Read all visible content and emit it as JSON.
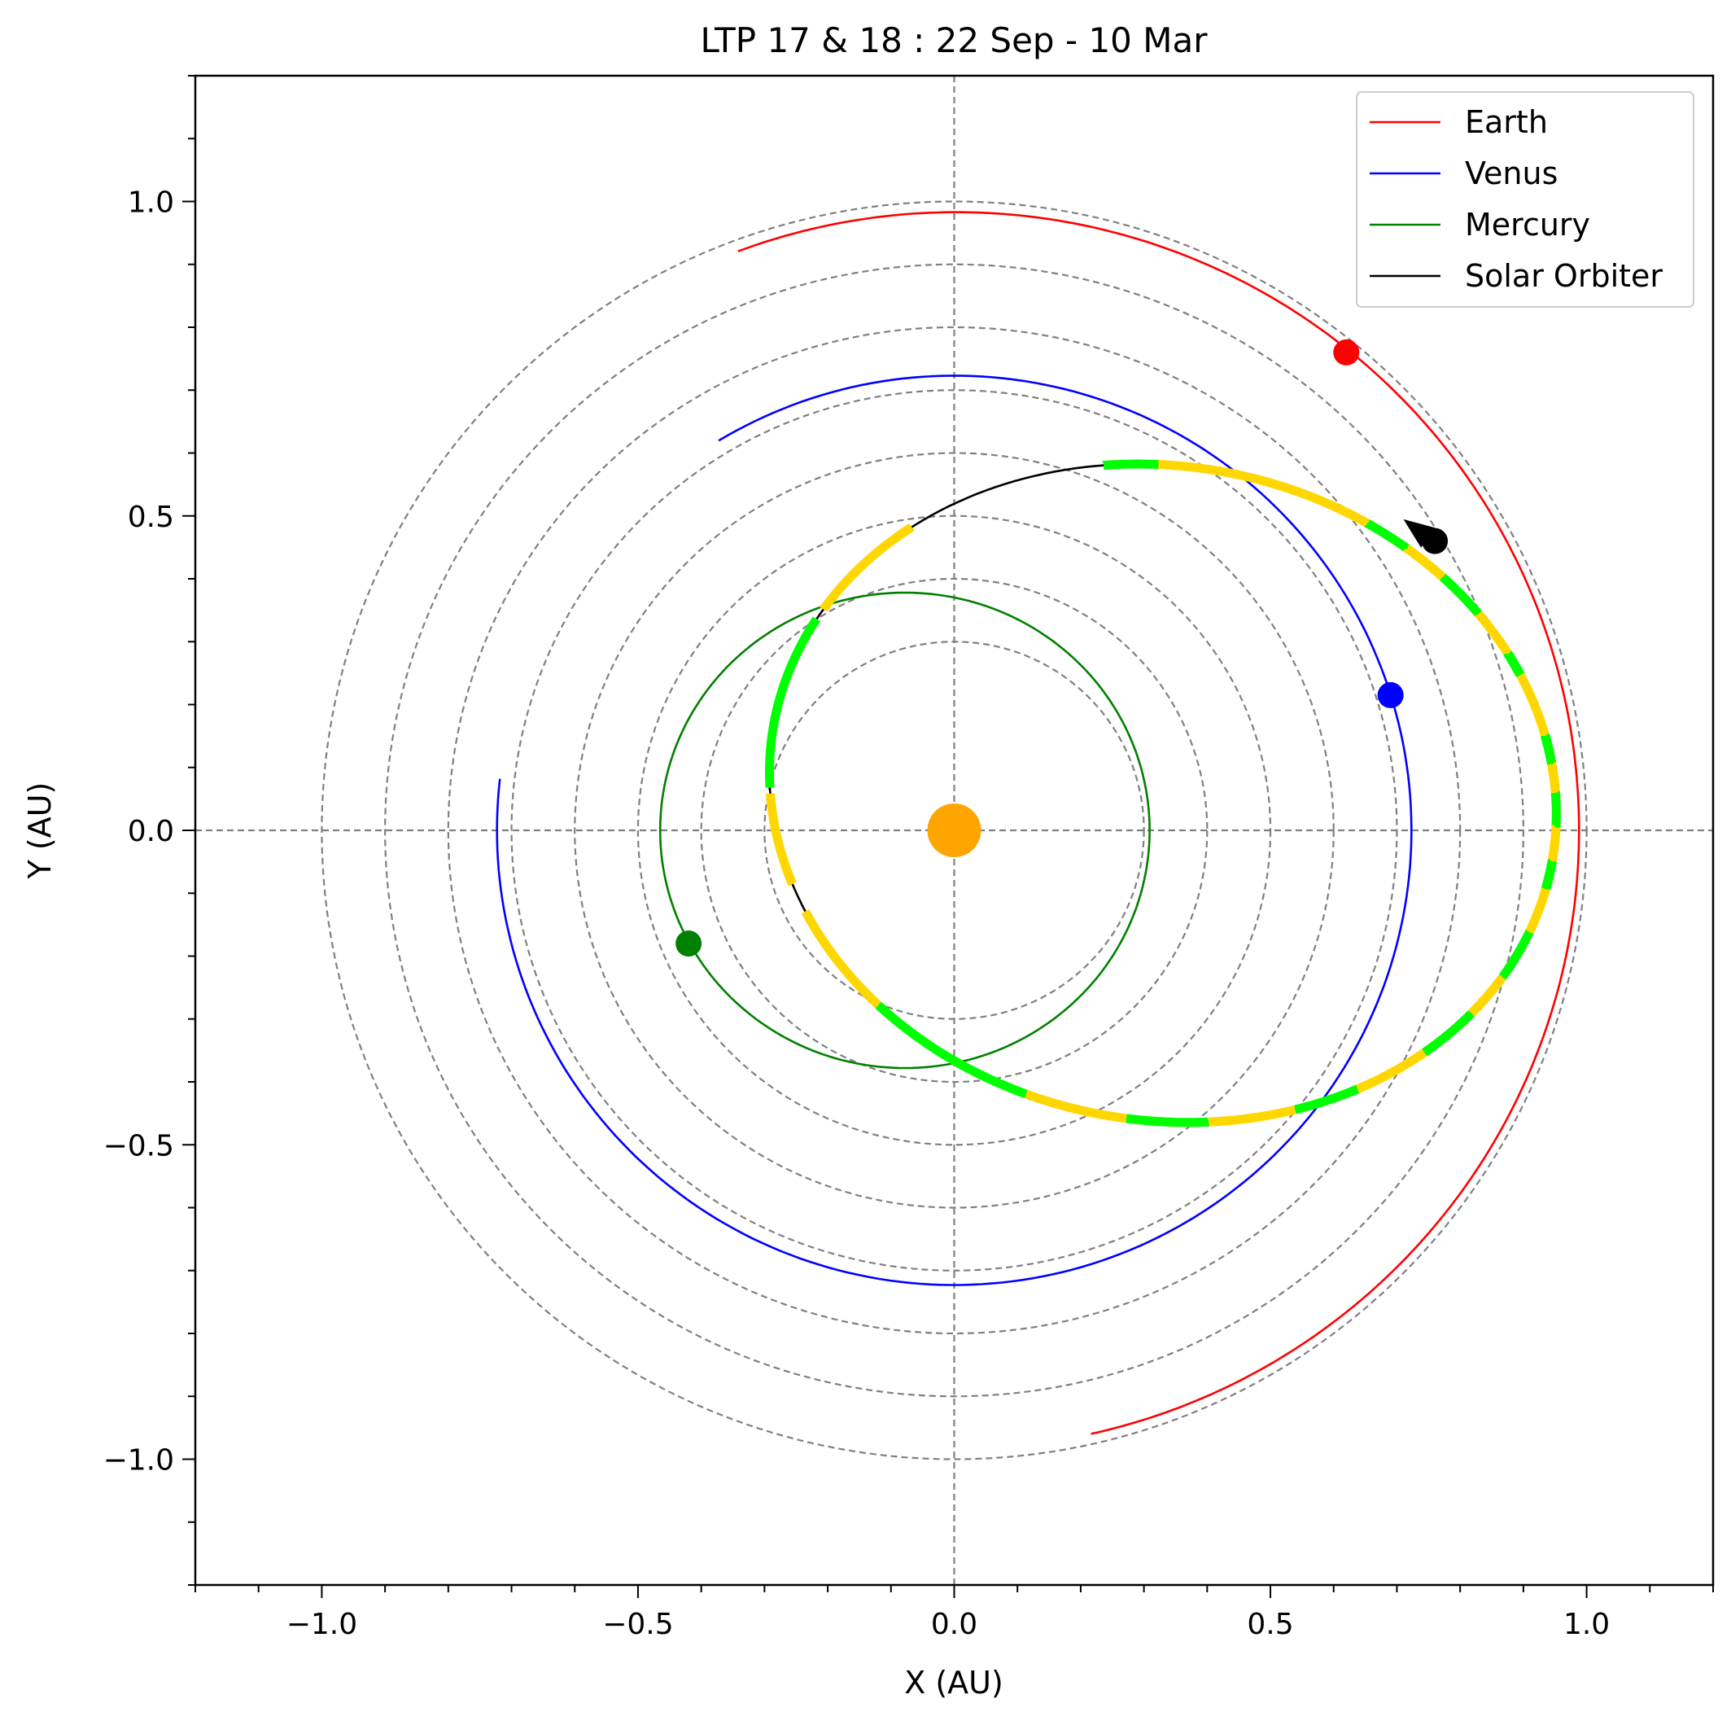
{
  "chart_data": {
    "type": "line",
    "title": "LTP 17 & 18 : 22 Sep - 10 Mar",
    "xlabel": "X (AU)",
    "ylabel": "Y (AU)",
    "xlim": [
      -1.2,
      1.2
    ],
    "ylim": [
      -1.2,
      1.2
    ],
    "x_ticks": [
      "−1.0",
      "−0.5",
      "0.0",
      "0.5",
      "1.0"
    ],
    "x_tick_values": [
      -1.0,
      -0.5,
      0.0,
      0.5,
      1.0
    ],
    "y_ticks": [
      "1.0",
      "0.5",
      "0.0",
      "−0.5",
      "−1.0"
    ],
    "y_tick_values": [
      1.0,
      0.5,
      0.0,
      -0.5,
      -1.0
    ],
    "reference_circles_radius_au": [
      0.3,
      0.4,
      0.5,
      0.6,
      0.7,
      0.8,
      0.9,
      1.0
    ],
    "reference_axes": true,
    "legend_position": "top-right",
    "colors": {
      "earth": "#ff0000",
      "venus": "#0000ff",
      "mercury": "#008000",
      "solar_orbiter": "#000000",
      "segment_yellow": "#ffd700",
      "segment_green": "#00ff00",
      "sun": "#ffa500",
      "grid": "#808080"
    },
    "series": [
      {
        "name": "Earth",
        "color": "#ff0000",
        "type": "ellipse_arc",
        "center": [
          0.003,
          0.0
        ],
        "a": 0.985,
        "b": 0.983,
        "e_dir": 0,
        "start_deg": 110.5,
        "end_deg": -77.5,
        "marker": [
          0.62,
          0.76
        ]
      },
      {
        "name": "Venus",
        "color": "#0000ff",
        "type": "ellipse_arc",
        "center": [
          0.0,
          0.0
        ],
        "a": 0.723,
        "b": 0.723,
        "e_dir": 0,
        "start_deg": 121.0,
        "end_deg": -186.5,
        "marker": [
          0.69,
          0.215
        ]
      },
      {
        "name": "Mercury",
        "color": "#008000",
        "type": "ellipse_arc",
        "center": [
          -0.078,
          0.0
        ],
        "a": 0.387,
        "b": 0.378,
        "e_dir": 0,
        "start_deg": 0,
        "end_deg": 360,
        "marker": [
          -0.42,
          -0.18
        ]
      },
      {
        "name": "Solar Orbiter",
        "color": "#000000",
        "type": "ellipse_arc",
        "center": [
          0.33,
          0.059
        ],
        "a": 0.625,
        "b": 0.52,
        "e_dir": -10,
        "start_deg": 146.9,
        "end_deg": -226.0,
        "marker": [
          0.76,
          0.46
        ]
      }
    ],
    "highlight_segments": [
      {
        "color": "#00ff00",
        "from_deg": 107,
        "to_deg": 99
      },
      {
        "color": "#ffd700",
        "from_deg": 99,
        "to_deg": 67
      },
      {
        "color": "#00ff00",
        "from_deg": 67,
        "to_deg": 60
      },
      {
        "color": "#ffd700",
        "from_deg": 60,
        "to_deg": 53
      },
      {
        "color": "#00ff00",
        "from_deg": 53,
        "to_deg": 45
      },
      {
        "color": "#ffd700",
        "from_deg": 45,
        "to_deg": 37
      },
      {
        "color": "#00ff00",
        "from_deg": 37,
        "to_deg": 33
      },
      {
        "color": "#ffd700",
        "from_deg": 33,
        "to_deg": 22
      },
      {
        "color": "#00ff00",
        "from_deg": 22,
        "to_deg": 17
      },
      {
        "color": "#ffd700",
        "from_deg": 17,
        "to_deg": 12
      },
      {
        "color": "#00ff00",
        "from_deg": 12,
        "to_deg": 6
      },
      {
        "color": "#ffd700",
        "from_deg": 6,
        "to_deg": 0
      },
      {
        "color": "#00ff00",
        "from_deg": 0,
        "to_deg": -5
      },
      {
        "color": "#ffd700",
        "from_deg": -5,
        "to_deg": -13
      },
      {
        "color": "#00ff00",
        "from_deg": -13,
        "to_deg": -22
      },
      {
        "color": "#ffd700",
        "from_deg": -22,
        "to_deg": -30
      },
      {
        "color": "#00ff00",
        "from_deg": -30,
        "to_deg": -40
      },
      {
        "color": "#ffd700",
        "from_deg": -40,
        "to_deg": -52
      },
      {
        "color": "#00ff00",
        "from_deg": -52,
        "to_deg": -62
      },
      {
        "color": "#ffd700",
        "from_deg": -62,
        "to_deg": -75
      },
      {
        "color": "#00ff00",
        "from_deg": -75,
        "to_deg": -87
      },
      {
        "color": "#ffd700",
        "from_deg": -87,
        "to_deg": -102
      },
      {
        "color": "#00ff00",
        "from_deg": -102,
        "to_deg": -128
      },
      {
        "color": "#ffd700",
        "from_deg": -128,
        "to_deg": -147
      },
      {
        "color": "#ffd700",
        "from_deg": -152,
        "to_deg": -168
      },
      {
        "color": "#00ff00",
        "from_deg": -169,
        "to_deg": -200
      },
      {
        "color": "#ffd700",
        "from_deg": -202,
        "to_deg": -222
      }
    ],
    "direction_arrow": {
      "at": [
        0.73,
        0.48
      ],
      "toward": [
        0.71,
        0.495
      ],
      "color": "#000000"
    },
    "sun": {
      "position": [
        0.0,
        0.0
      ],
      "color": "#ffa500"
    }
  }
}
